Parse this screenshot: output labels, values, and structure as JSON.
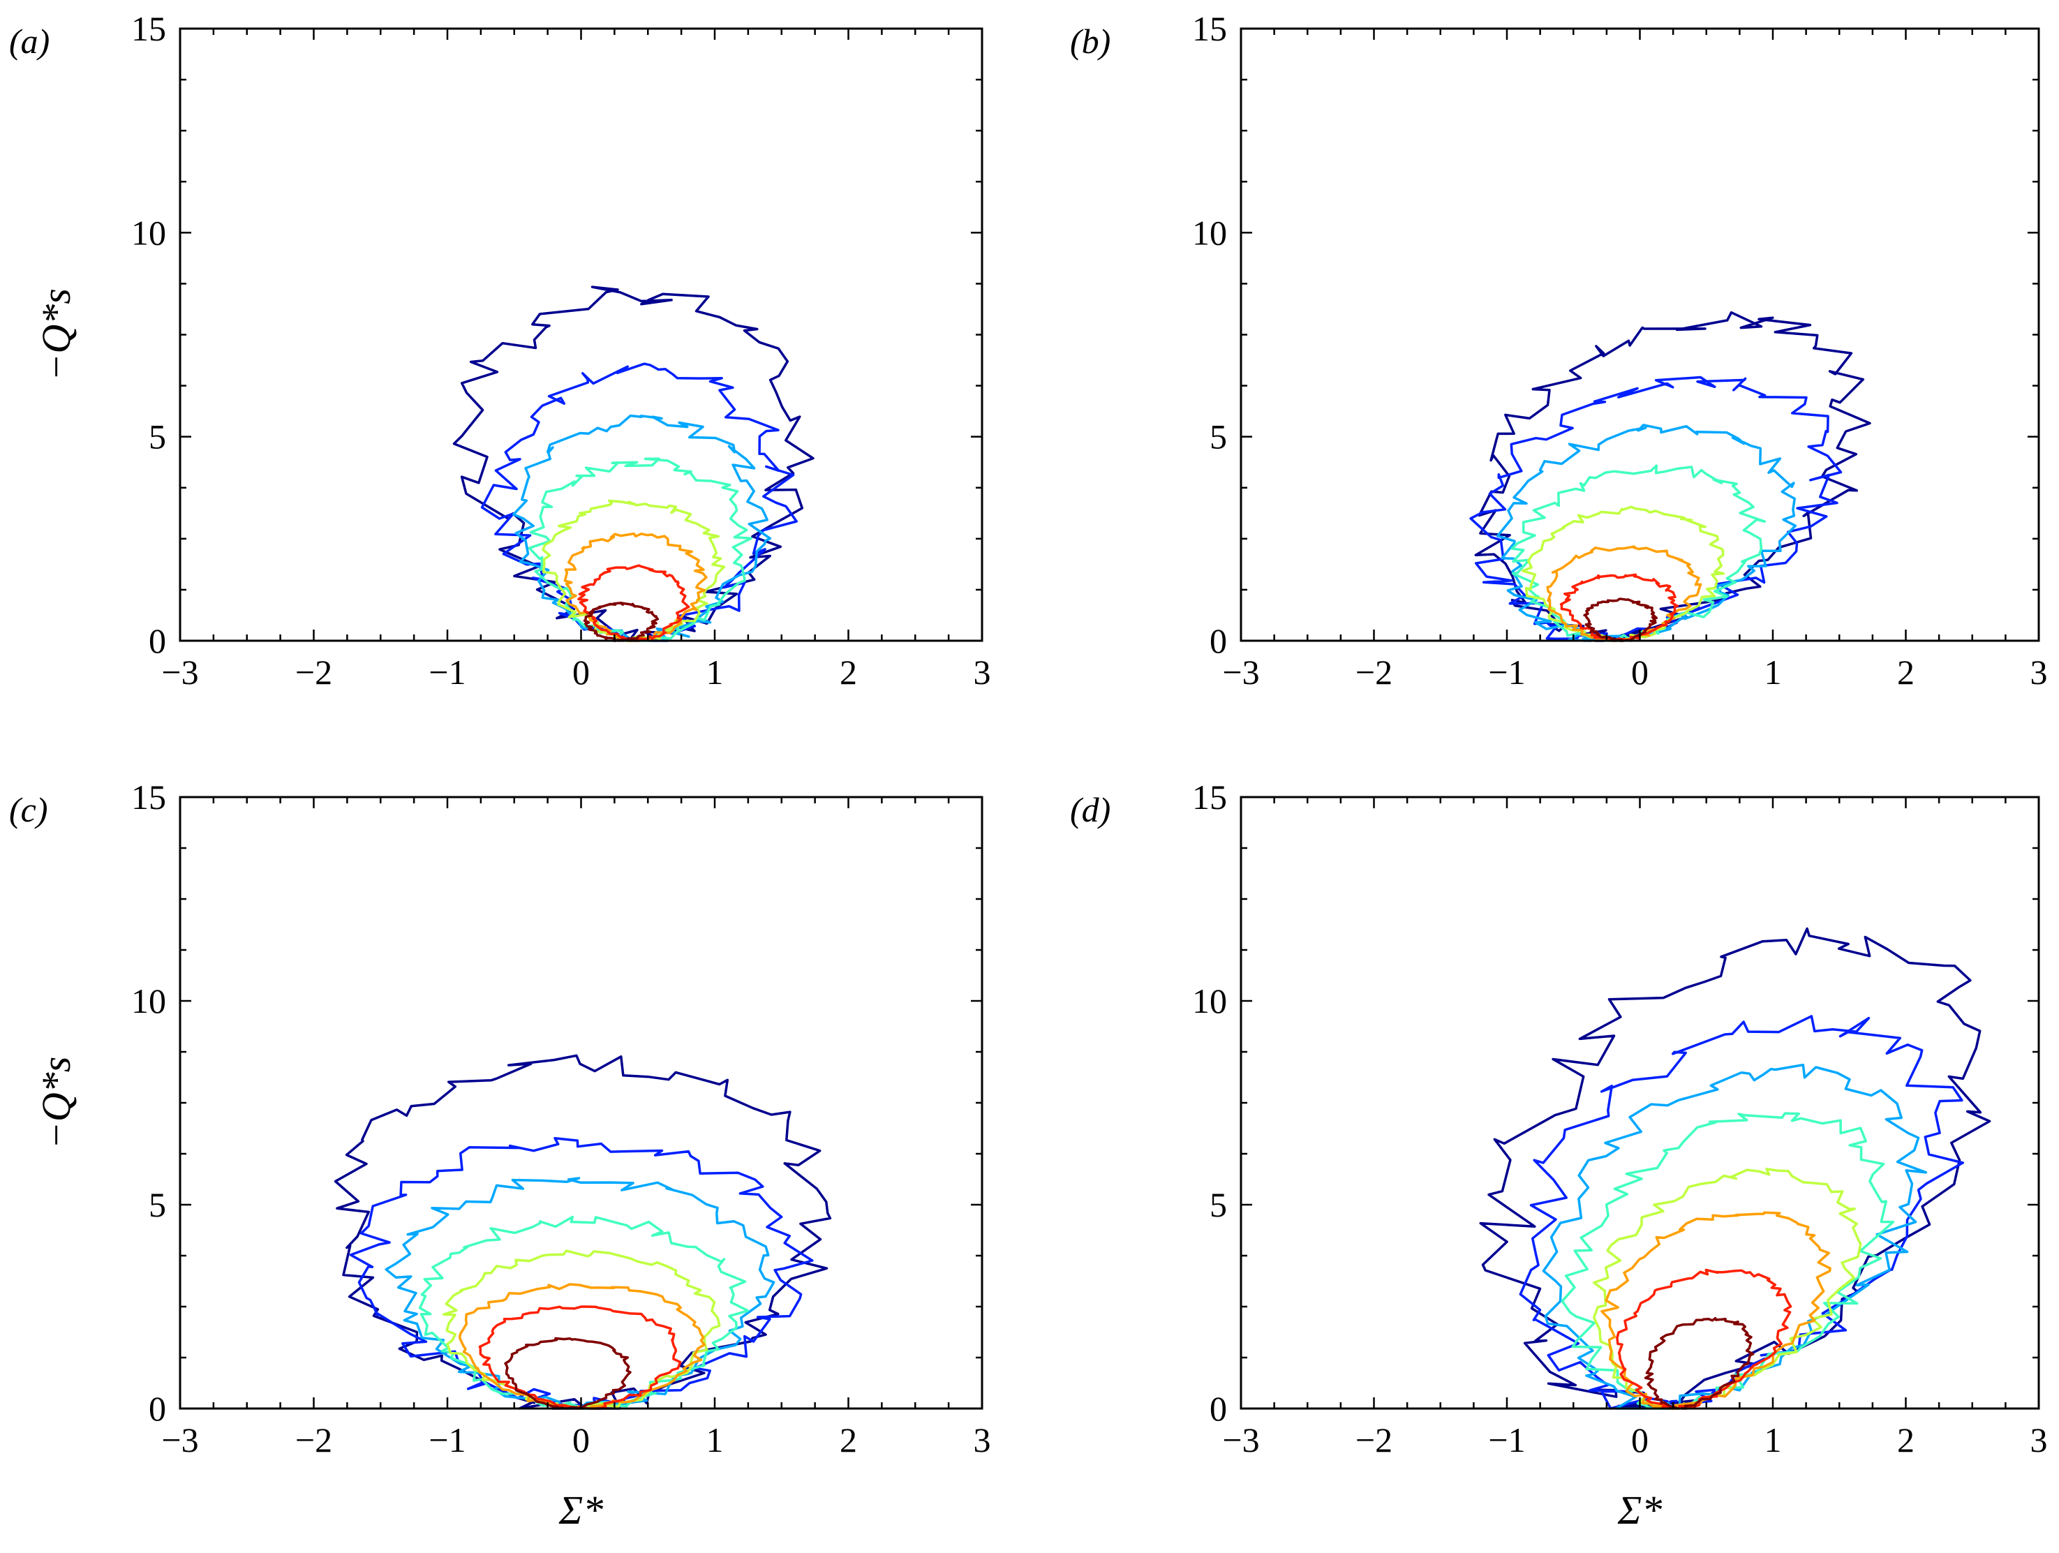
{
  "chart_data": [
    {
      "type": "contour",
      "panel_label": "(a)",
      "ylabel": "−Q*s",
      "xlabel": "",
      "xlim": [
        -3,
        3
      ],
      "ylim": [
        0,
        15
      ],
      "xticks": [
        "−3",
        "−2",
        "−1",
        "0",
        "1",
        "2",
        "3"
      ],
      "yticks": [
        "0",
        "5",
        "10",
        "15"
      ],
      "levels": [
        {
          "color": "#00008f",
          "cx": 0.4,
          "hw": 1.3,
          "top": 8.5,
          "tilt": 0.0,
          "noise": 0.25
        },
        {
          "color": "#0020ff",
          "cx": 0.45,
          "hw": 1.15,
          "top": 6.6,
          "tilt": 0.0,
          "noise": 0.2
        },
        {
          "color": "#00a8ff",
          "cx": 0.45,
          "hw": 1.0,
          "top": 5.4,
          "tilt": 0.0,
          "noise": 0.15
        },
        {
          "color": "#40ffbf",
          "cx": 0.45,
          "hw": 0.85,
          "top": 4.4,
          "tilt": 0.0,
          "noise": 0.12
        },
        {
          "color": "#bfff40",
          "cx": 0.4,
          "hw": 0.7,
          "top": 3.4,
          "tilt": 0.0,
          "noise": 0.08
        },
        {
          "color": "#ff9f00",
          "cx": 0.4,
          "hw": 0.55,
          "top": 2.6,
          "tilt": 0.0,
          "noise": 0.06
        },
        {
          "color": "#ff2000",
          "cx": 0.4,
          "hw": 0.42,
          "top": 1.8,
          "tilt": 0.0,
          "noise": 0.05
        },
        {
          "color": "#800000",
          "cx": 0.3,
          "hw": 0.28,
          "top": 0.9,
          "tilt": 0.0,
          "noise": 0.03
        }
      ]
    },
    {
      "type": "contour",
      "panel_label": "(b)",
      "ylabel": "",
      "xlabel": "",
      "xlim": [
        -3,
        3
      ],
      "ylim": [
        0,
        15
      ],
      "xticks": [
        "−3",
        "−2",
        "−1",
        "0",
        "1",
        "2",
        "3"
      ],
      "yticks": [
        "0",
        "5",
        "10",
        "15"
      ],
      "levels": [
        {
          "color": "#00008f",
          "cx": -0.3,
          "hw": 1.45,
          "top": 7.8,
          "tilt": 0.12,
          "noise": 0.25
        },
        {
          "color": "#0020ff",
          "cx": -0.3,
          "hw": 1.35,
          "top": 6.3,
          "tilt": 0.12,
          "noise": 0.2
        },
        {
          "color": "#00a8ff",
          "cx": -0.25,
          "hw": 1.15,
          "top": 5.2,
          "tilt": 0.1,
          "noise": 0.15
        },
        {
          "color": "#40ffbf",
          "cx": -0.2,
          "hw": 0.95,
          "top": 4.2,
          "tilt": 0.08,
          "noise": 0.12
        },
        {
          "color": "#bfff40",
          "cx": -0.2,
          "hw": 0.8,
          "top": 3.2,
          "tilt": 0.05,
          "noise": 0.08
        },
        {
          "color": "#ff9f00",
          "cx": -0.2,
          "hw": 0.6,
          "top": 2.3,
          "tilt": 0.05,
          "noise": 0.06
        },
        {
          "color": "#ff2000",
          "cx": -0.15,
          "hw": 0.45,
          "top": 1.6,
          "tilt": 0.0,
          "noise": 0.05
        },
        {
          "color": "#800000",
          "cx": -0.15,
          "hw": 0.28,
          "top": 1.0,
          "tilt": 0.0,
          "noise": 0.03
        }
      ]
    },
    {
      "type": "contour",
      "panel_label": "(c)",
      "ylabel": "−Q*s",
      "xlabel": "Σ*",
      "xlim": [
        -3,
        3
      ],
      "ylim": [
        0,
        15
      ],
      "xticks": [
        "−3",
        "−2",
        "−1",
        "0",
        "1",
        "2",
        "3"
      ],
      "yticks": [
        "0",
        "5",
        "10",
        "15"
      ],
      "levels": [
        {
          "color": "#00008f",
          "cx": 0.0,
          "hw": 1.95,
          "top": 8.5,
          "tilt": 0.0,
          "noise": 0.25
        },
        {
          "color": "#0020ff",
          "cx": 0.0,
          "hw": 1.75,
          "top": 6.5,
          "tilt": 0.0,
          "noise": 0.2
        },
        {
          "color": "#00a8ff",
          "cx": 0.0,
          "hw": 1.5,
          "top": 5.6,
          "tilt": 0.0,
          "noise": 0.15
        },
        {
          "color": "#40ffbf",
          "cx": 0.0,
          "hw": 1.3,
          "top": 4.6,
          "tilt": 0.0,
          "noise": 0.12
        },
        {
          "color": "#bfff40",
          "cx": 0.0,
          "hw": 1.1,
          "top": 3.8,
          "tilt": 0.0,
          "noise": 0.08
        },
        {
          "color": "#ff9f00",
          "cx": 0.0,
          "hw": 1.0,
          "top": 3.0,
          "tilt": 0.0,
          "noise": 0.06
        },
        {
          "color": "#ff2000",
          "cx": 0.0,
          "hw": 0.8,
          "top": 2.5,
          "tilt": 0.0,
          "noise": 0.05
        },
        {
          "color": "#800000",
          "cx": -0.1,
          "hw": 0.5,
          "top": 1.7,
          "tilt": 0.0,
          "noise": 0.03
        }
      ]
    },
    {
      "type": "contour",
      "panel_label": "(d)",
      "ylabel": "",
      "xlabel": "Σ*",
      "xlim": [
        -3,
        3
      ],
      "ylim": [
        0,
        15
      ],
      "xticks": [
        "−3",
        "−2",
        "−1",
        "0",
        "1",
        "2",
        "3"
      ],
      "yticks": [
        "0",
        "5",
        "10",
        "15"
      ],
      "levels": [
        {
          "color": "#00008f",
          "cx": 0.0,
          "hw": 1.8,
          "top": 11.5,
          "tilt": 0.12,
          "noise": 0.3
        },
        {
          "color": "#0020ff",
          "cx": 0.1,
          "hw": 1.6,
          "top": 9.5,
          "tilt": 0.12,
          "noise": 0.25
        },
        {
          "color": "#00a8ff",
          "cx": 0.15,
          "hw": 1.4,
          "top": 8.3,
          "tilt": 0.12,
          "noise": 0.2
        },
        {
          "color": "#40ffbf",
          "cx": 0.2,
          "hw": 1.2,
          "top": 7.2,
          "tilt": 0.12,
          "noise": 0.15
        },
        {
          "color": "#bfff40",
          "cx": 0.25,
          "hw": 1.0,
          "top": 5.8,
          "tilt": 0.12,
          "noise": 0.1
        },
        {
          "color": "#ff9f00",
          "cx": 0.25,
          "hw": 0.85,
          "top": 4.8,
          "tilt": 0.12,
          "noise": 0.08
        },
        {
          "color": "#ff2000",
          "cx": 0.25,
          "hw": 0.65,
          "top": 3.4,
          "tilt": 0.12,
          "noise": 0.06
        },
        {
          "color": "#800000",
          "cx": 0.3,
          "hw": 0.4,
          "top": 2.2,
          "tilt": 0.12,
          "noise": 0.04
        }
      ]
    }
  ]
}
